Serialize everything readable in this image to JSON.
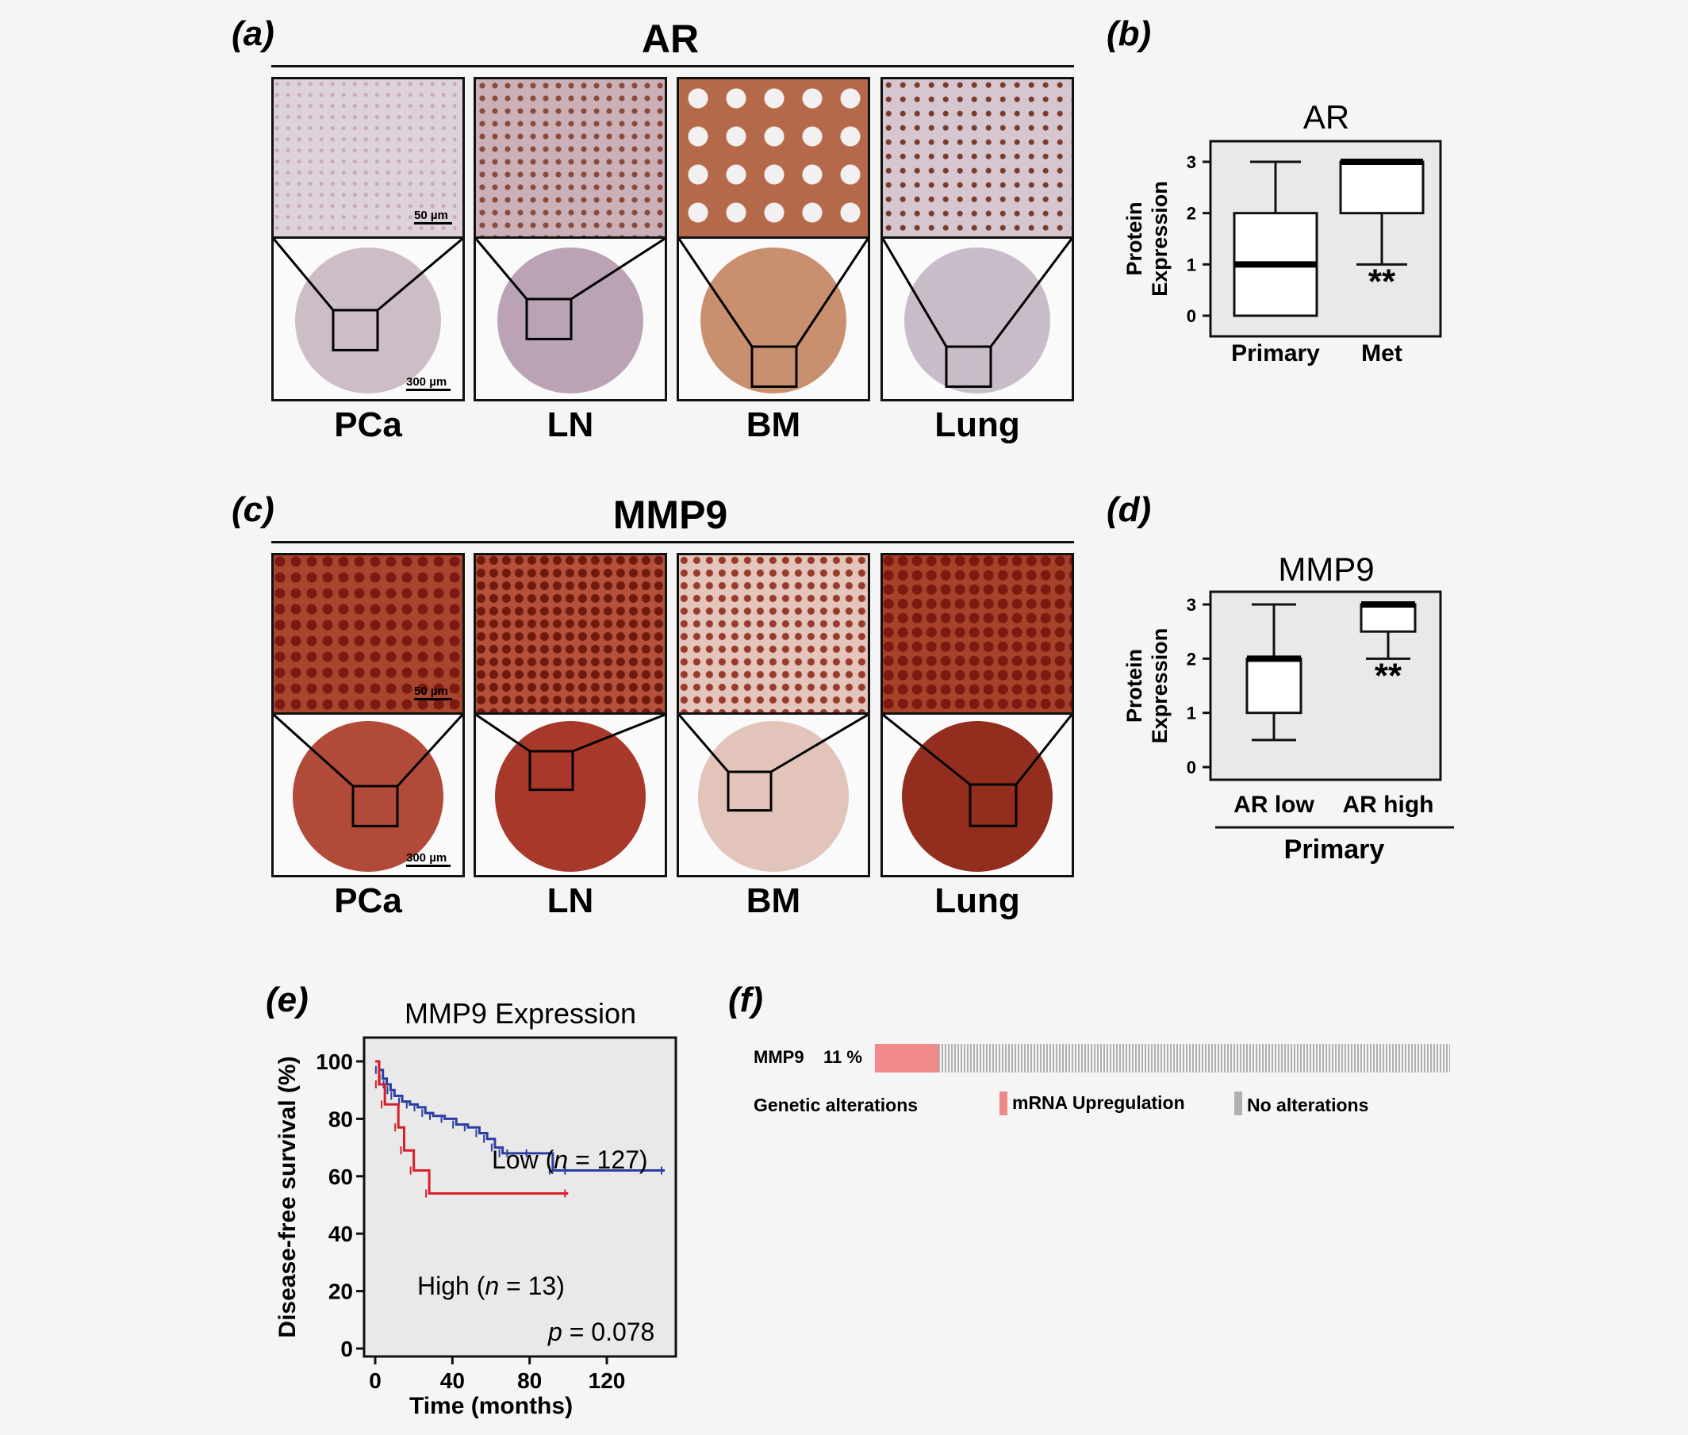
{
  "panel_a": {
    "label": "(a)",
    "title": "AR",
    "tissues": [
      "PCa",
      "LN",
      "BM",
      "Lung"
    ],
    "scale_top": "50 µm",
    "scale_bottom": "300 µm"
  },
  "panel_c": {
    "label": "(c)",
    "title": "MMP9",
    "tissues": [
      "PCa",
      "LN",
      "BM",
      "Lung"
    ],
    "scale_top": "50 µm",
    "scale_bottom": "300 µm"
  },
  "panel_b": {
    "label": "(b)"
  },
  "panel_d": {
    "label": "(d)",
    "group_label": "Primary"
  },
  "panel_e": {
    "label": "(e)"
  },
  "panel_f": {
    "label": "(f)",
    "gene": "MMP9",
    "percent": "11 %",
    "genetic_alterations": "Genetic alterations",
    "legend_mrna": "mRNA Upregulation",
    "legend_none": "No alterations",
    "mrna_color": "#f08a8a",
    "none_color": "#b0b0b0"
  },
  "colors": {
    "ar_stain": "#7a3b2a",
    "mmp9_stain": "#9a2a1c",
    "low_curve": "#2b3fa0",
    "high_curve": "#d8202a"
  },
  "chart_data": [
    {
      "type": "box",
      "title": "AR",
      "ylabel": "Protein Expression",
      "categories": [
        "Primary",
        "Met"
      ],
      "yticks": [
        0,
        1,
        2,
        3
      ],
      "ylim": [
        0,
        3
      ],
      "boxes": [
        {
          "min": 0,
          "q1": 0,
          "median": 1,
          "q3": 2,
          "max": 3
        },
        {
          "min": 1,
          "q1": 2,
          "median": 3,
          "q3": 3,
          "max": 3
        }
      ],
      "annotation": "**"
    },
    {
      "type": "box",
      "title": "MMP9",
      "ylabel": "Protein Expression",
      "categories": [
        "AR low",
        "AR high"
      ],
      "yticks": [
        0,
        1,
        2,
        3
      ],
      "ylim": [
        0,
        3
      ],
      "boxes": [
        {
          "min": 0.5,
          "q1": 1,
          "median": 2,
          "q3": 2,
          "max": 3
        },
        {
          "min": 2,
          "q1": 2.5,
          "median": 3,
          "q3": 3,
          "max": 3
        }
      ],
      "annotation": "**"
    },
    {
      "type": "line",
      "title": "MMP9 Expression",
      "xlabel": "Time (months)",
      "ylabel": "Disease-free survival (%)",
      "xticks": [
        0,
        40,
        80,
        120
      ],
      "yticks": [
        0,
        20,
        40,
        60,
        80,
        100
      ],
      "xlim": [
        0,
        150
      ],
      "ylim": [
        0,
        100
      ],
      "series": [
        {
          "name": "Low (n = 127)",
          "label_parts": [
            "Low (",
            "n",
            " = 127)"
          ],
          "x": [
            0,
            2,
            4,
            6,
            8,
            10,
            14,
            18,
            22,
            26,
            30,
            36,
            42,
            48,
            54,
            58,
            62,
            66,
            70,
            80,
            92,
            100,
            150
          ],
          "y": [
            100,
            97,
            94,
            92,
            90,
            88,
            86,
            85,
            84,
            82,
            81,
            80,
            78,
            77,
            75,
            73,
            70,
            68,
            68,
            68,
            62,
            62,
            62
          ]
        },
        {
          "name": "High (n = 13)",
          "label_parts": [
            "High (",
            "n",
            " = 13)"
          ],
          "x": [
            0,
            2,
            5,
            12,
            15,
            20,
            28,
            100
          ],
          "y": [
            100,
            92,
            85,
            77,
            69,
            62,
            54,
            54
          ]
        }
      ],
      "pvalue_parts": [
        "p",
        " = 0.078"
      ]
    }
  ]
}
